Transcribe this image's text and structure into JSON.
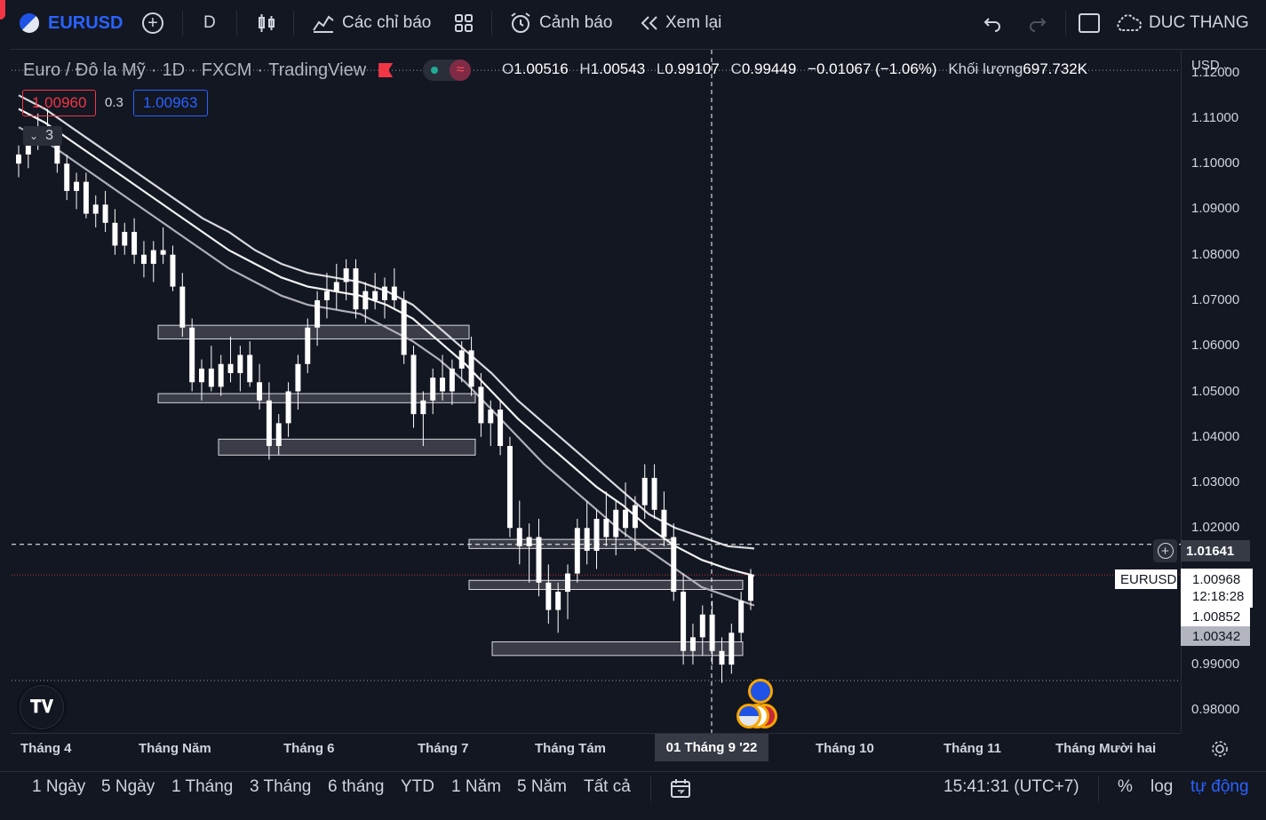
{
  "toolbar": {
    "symbol": "EURUSD",
    "interval": "D",
    "indicators_label": "Các chỉ báo",
    "alert_label": "Cảnh báo",
    "replay_label": "Xem lại",
    "user_name": "DUC THANG"
  },
  "legend": {
    "title": "Euro / Đô la Mỹ",
    "timeframe": "1D",
    "exchange": "FXCM",
    "source": "TradingView",
    "o_label": "O",
    "o_value": "1.00516",
    "h_label": "H",
    "h_value": "1.00543",
    "l_label": "L",
    "l_value": "0.99107",
    "c_label": "C",
    "c_value": "0.99449",
    "change": "−0.01067 (−1.06%)",
    "volume_label": "Khối lượng",
    "volume_value": "697.732K",
    "sell_price": "1.00960",
    "spread": "0.3",
    "buy_price": "1.00963",
    "collapse_count": "3"
  },
  "price_axis": {
    "currency": "USD",
    "labels": [
      "1.12000",
      "1.11000",
      "1.10000",
      "1.09000",
      "1.08000",
      "1.07000",
      "1.06000",
      "1.05000",
      "1.04000",
      "1.03000",
      "1.02000",
      "0.99000",
      "0.98000"
    ],
    "crosshair_price": "1.01641",
    "symbol_tag": "EURUSD",
    "last_price": "1.00968",
    "countdown": "12:18:28",
    "tag_price_2": "1.00852",
    "tag_price_3": "1.00342"
  },
  "time_axis": {
    "labels": [
      "Tháng 4",
      "Tháng Năm",
      "Tháng 6",
      "Tháng 7",
      "Tháng Tám",
      "Tháng 10",
      "Tháng 11",
      "Tháng Mười hai"
    ],
    "crosshair_date": "01 Tháng 9 '22"
  },
  "bottombar": {
    "ranges": [
      "1 Ngày",
      "5 Ngày",
      "1 Tháng",
      "3 Tháng",
      "6 tháng",
      "YTD",
      "1 Năm",
      "5 Năm",
      "Tất cả"
    ],
    "clock": "15:41:31 (UTC+7)",
    "percent": "%",
    "log": "log",
    "auto": "tự động"
  },
  "colors": {
    "background": "#131722",
    "candle": "#ffffff",
    "accent_blue": "#2962ff",
    "sell_red": "#f23645"
  },
  "chart_data": {
    "type": "candlestick",
    "symbol": "EURUSD",
    "ylim": [
      0.975,
      1.125
    ],
    "candles": [
      [
        1.1,
        1.104,
        1.097,
        1.102
      ],
      [
        1.102,
        1.108,
        1.099,
        1.106
      ],
      [
        1.106,
        1.111,
        1.103,
        1.108
      ],
      [
        1.108,
        1.112,
        1.104,
        1.105
      ],
      [
        1.105,
        1.107,
        1.098,
        1.1
      ],
      [
        1.1,
        1.102,
        1.092,
        1.094
      ],
      [
        1.094,
        1.098,
        1.09,
        1.096
      ],
      [
        1.096,
        1.098,
        1.088,
        1.089
      ],
      [
        1.089,
        1.093,
        1.086,
        1.091
      ],
      [
        1.091,
        1.094,
        1.085,
        1.087
      ],
      [
        1.087,
        1.09,
        1.08,
        1.082
      ],
      [
        1.082,
        1.087,
        1.08,
        1.085
      ],
      [
        1.085,
        1.088,
        1.078,
        1.08
      ],
      [
        1.08,
        1.083,
        1.075,
        1.078
      ],
      [
        1.078,
        1.083,
        1.074,
        1.081
      ],
      [
        1.081,
        1.086,
        1.078,
        1.08
      ],
      [
        1.08,
        1.082,
        1.072,
        1.073
      ],
      [
        1.073,
        1.076,
        1.062,
        1.064
      ],
      [
        1.064,
        1.066,
        1.05,
        1.052
      ],
      [
        1.052,
        1.057,
        1.048,
        1.055
      ],
      [
        1.055,
        1.06,
        1.05,
        1.051
      ],
      [
        1.051,
        1.058,
        1.049,
        1.056
      ],
      [
        1.056,
        1.062,
        1.052,
        1.054
      ],
      [
        1.054,
        1.06,
        1.05,
        1.058
      ],
      [
        1.058,
        1.061,
        1.051,
        1.052
      ],
      [
        1.052,
        1.056,
        1.046,
        1.048
      ],
      [
        1.048,
        1.052,
        1.035,
        1.038
      ],
      [
        1.038,
        1.045,
        1.036,
        1.043
      ],
      [
        1.043,
        1.052,
        1.04,
        1.05
      ],
      [
        1.05,
        1.058,
        1.046,
        1.056
      ],
      [
        1.056,
        1.066,
        1.054,
        1.064
      ],
      [
        1.064,
        1.072,
        1.06,
        1.07
      ],
      [
        1.07,
        1.076,
        1.066,
        1.072
      ],
      [
        1.072,
        1.078,
        1.068,
        1.074
      ],
      [
        1.074,
        1.079,
        1.07,
        1.077
      ],
      [
        1.077,
        1.079,
        1.066,
        1.068
      ],
      [
        1.068,
        1.074,
        1.065,
        1.072
      ],
      [
        1.072,
        1.076,
        1.068,
        1.07
      ],
      [
        1.07,
        1.075,
        1.066,
        1.073
      ],
      [
        1.073,
        1.077,
        1.068,
        1.07
      ],
      [
        1.07,
        1.072,
        1.056,
        1.058
      ],
      [
        1.058,
        1.06,
        1.042,
        1.045
      ],
      [
        1.045,
        1.05,
        1.038,
        1.048
      ],
      [
        1.048,
        1.055,
        1.045,
        1.053
      ],
      [
        1.053,
        1.058,
        1.048,
        1.05
      ],
      [
        1.05,
        1.057,
        1.047,
        1.055
      ],
      [
        1.055,
        1.061,
        1.052,
        1.059
      ],
      [
        1.059,
        1.062,
        1.049,
        1.051
      ],
      [
        1.051,
        1.054,
        1.04,
        1.043
      ],
      [
        1.043,
        1.048,
        1.038,
        1.046
      ],
      [
        1.046,
        1.048,
        1.036,
        1.038
      ],
      [
        1.038,
        1.04,
        1.018,
        1.02
      ],
      [
        1.02,
        1.026,
        1.012,
        1.016
      ],
      [
        1.016,
        1.021,
        1.008,
        1.018
      ],
      [
        1.018,
        1.022,
        1.005,
        1.008
      ],
      [
        1.008,
        1.012,
        0.999,
        1.002
      ],
      [
        1.002,
        1.008,
        0.997,
        1.006
      ],
      [
        1.006,
        1.012,
        1.0,
        1.01
      ],
      [
        1.01,
        1.022,
        1.008,
        1.02
      ],
      [
        1.02,
        1.026,
        1.012,
        1.015
      ],
      [
        1.015,
        1.024,
        1.011,
        1.022
      ],
      [
        1.022,
        1.028,
        1.016,
        1.018
      ],
      [
        1.018,
        1.026,
        1.014,
        1.024
      ],
      [
        1.024,
        1.03,
        1.018,
        1.02
      ],
      [
        1.02,
        1.027,
        1.015,
        1.025
      ],
      [
        1.025,
        1.034,
        1.022,
        1.031
      ],
      [
        1.031,
        1.034,
        1.022,
        1.024
      ],
      [
        1.024,
        1.028,
        1.016,
        1.018
      ],
      [
        1.018,
        1.021,
        1.004,
        1.006
      ],
      [
        1.006,
        1.01,
        0.99,
        0.993
      ],
      [
        0.993,
        0.999,
        0.99,
        0.996
      ],
      [
        0.996,
        1.003,
        0.992,
        1.001
      ],
      [
        1.001,
        1.004,
        0.99,
        0.993
      ],
      [
        0.993,
        0.996,
        0.986,
        0.99
      ],
      [
        0.99,
        0.999,
        0.988,
        0.997
      ],
      [
        0.997,
        1.006,
        0.995,
        1.004
      ],
      [
        1.004,
        1.011,
        1.002,
        1.0097
      ]
    ],
    "moving_averages": [
      {
        "name": "",
        "values": [
          1.115,
          1.112,
          1.108,
          1.104,
          1.1,
          1.096,
          1.092,
          1.088,
          1.085,
          1.081,
          1.078,
          1.076,
          1.075,
          1.074,
          1.072,
          1.069,
          1.064,
          1.059,
          1.054,
          1.048,
          1.043,
          1.038,
          1.033,
          1.028,
          1.023,
          1.02,
          1.018,
          1.016,
          1.0155
        ]
      },
      {
        "name": "",
        "values": [
          1.112,
          1.109,
          1.105,
          1.101,
          1.097,
          1.093,
          1.089,
          1.085,
          1.081,
          1.078,
          1.075,
          1.073,
          1.072,
          1.071,
          1.069,
          1.066,
          1.061,
          1.056,
          1.05,
          1.044,
          1.039,
          1.034,
          1.029,
          1.025,
          1.02,
          1.016,
          1.013,
          1.011,
          1.0095
        ]
      },
      {
        "name": "",
        "values": [
          1.108,
          1.105,
          1.101,
          1.097,
          1.093,
          1.089,
          1.085,
          1.081,
          1.077,
          1.074,
          1.071,
          1.069,
          1.068,
          1.067,
          1.064,
          1.061,
          1.057,
          1.052,
          1.046,
          1.04,
          1.034,
          1.029,
          1.024,
          1.019,
          1.015,
          1.011,
          1.007,
          1.005,
          1.003
        ]
      }
    ],
    "zones": [
      {
        "from": 1.0615,
        "to": 1.0645
      },
      {
        "from": 1.0475,
        "to": 1.0495
      },
      {
        "from": 1.036,
        "to": 1.0395
      },
      {
        "from": 1.0155,
        "to": 1.0175
      },
      {
        "from": 1.0065,
        "to": 1.0085
      },
      {
        "from": 0.992,
        "to": 0.995
      }
    ],
    "crosshair_price": 1.01641,
    "last_price": 1.00968,
    "extra_line": 0.9865
  }
}
